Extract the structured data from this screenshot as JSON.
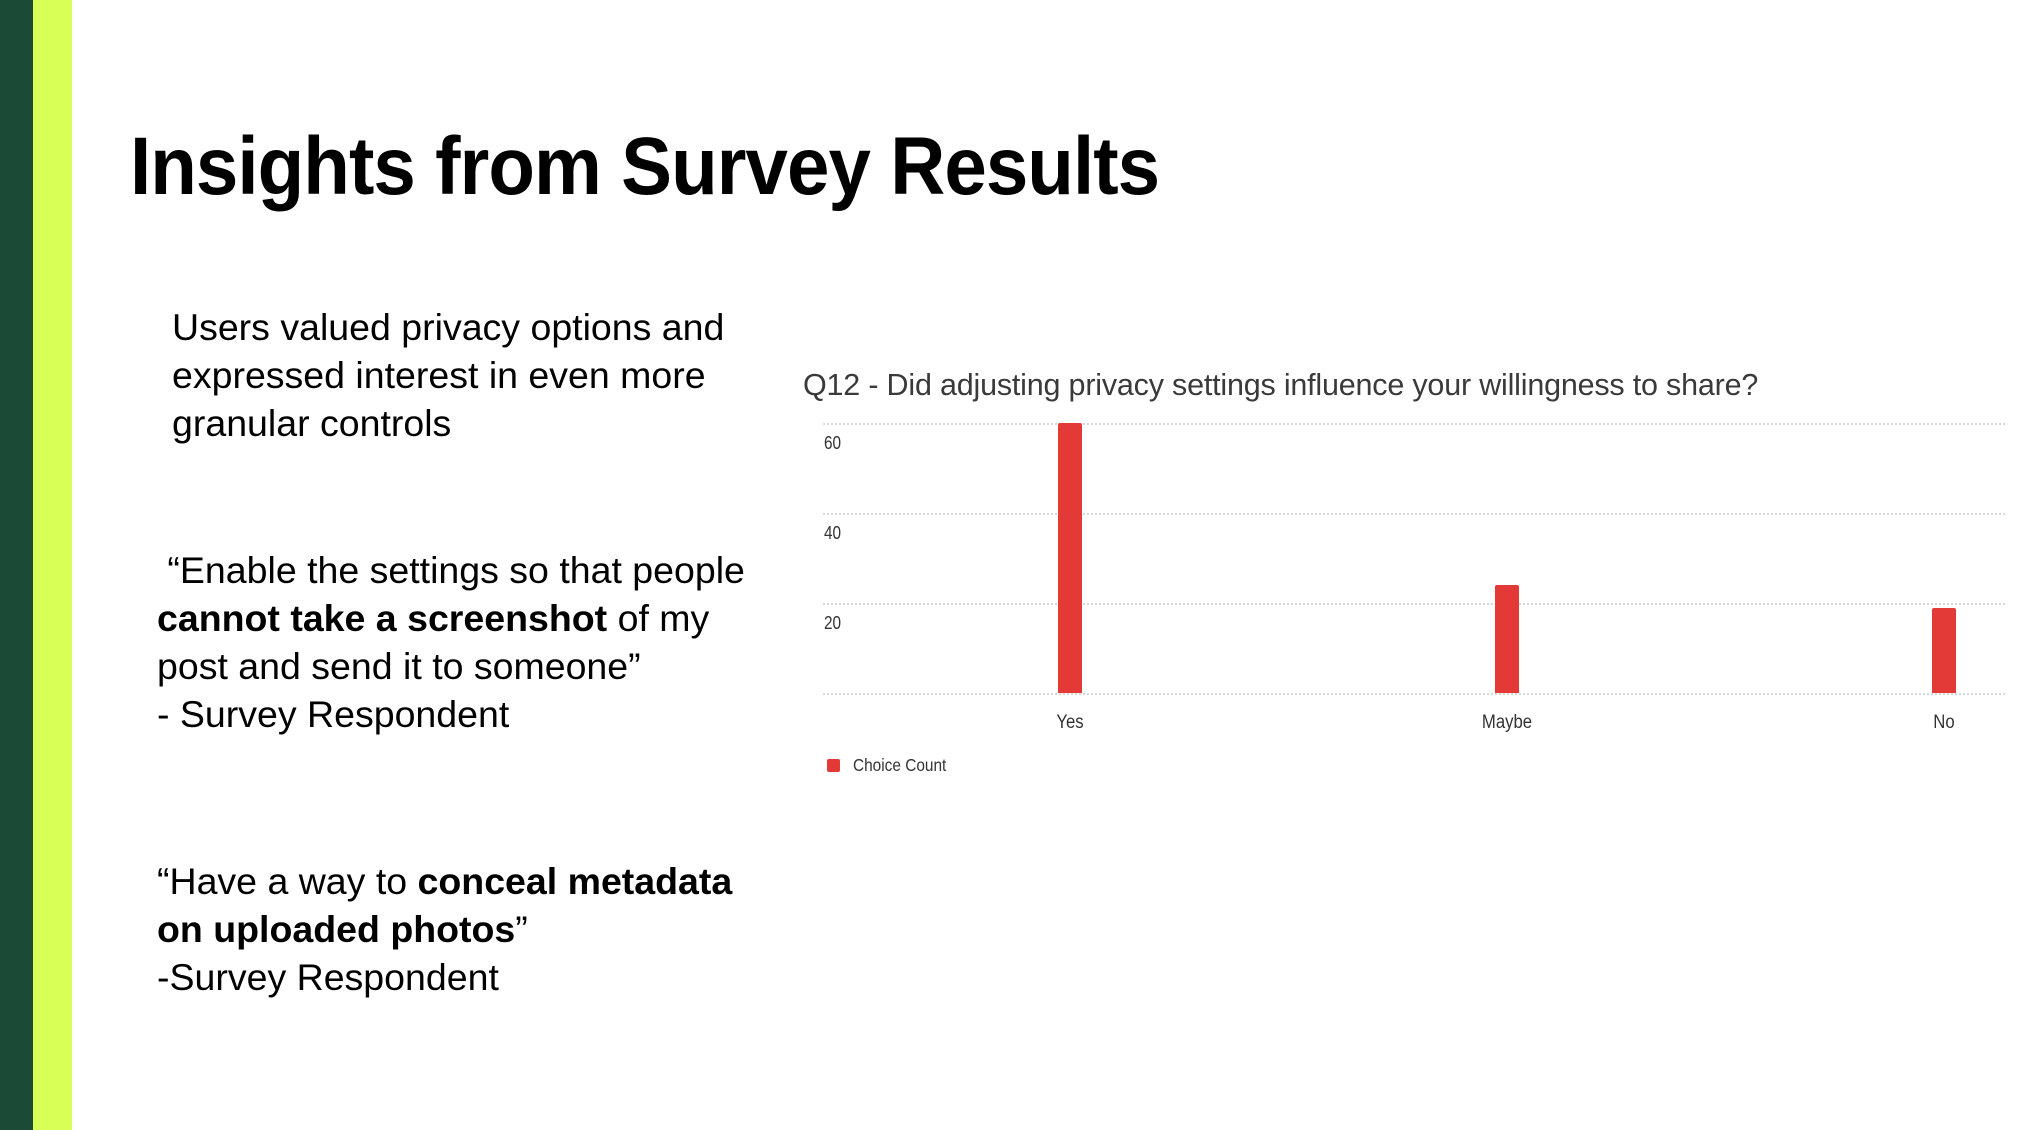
{
  "slide": {
    "title": "Insights from Survey Results",
    "accent_colors": {
      "dark_stripe": "#1b4a37",
      "lime_stripe": "#d7ff55"
    },
    "insight": "Users valued privacy options and expressed interest in even more granular controls",
    "insight_lines": [
      "Users valued privacy options and",
      "expressed interest in even more",
      "granular controls"
    ],
    "quote1": {
      "line1": " “Enable the settings so that people",
      "line2_bold": "cannot take a screenshot",
      "line2_rest": " of my",
      "line3": "post and send it to someone”",
      "attribution": "- Survey Respondent"
    },
    "quote2": {
      "line1_pre": "“Have a way to ",
      "line1_bold": "conceal metadata",
      "line2_bold": "on uploaded photos",
      "line2_rest": "”",
      "attribution": "-Survey Respondent"
    }
  },
  "chart_data": {
    "type": "bar",
    "title": "Q12 - Did adjusting privacy settings influence your willingness to share?",
    "categories": [
      "Yes",
      "Maybe",
      "No"
    ],
    "series": [
      {
        "name": "Choice Count",
        "color": "#e33a37",
        "values": [
          60,
          24,
          19
        ]
      }
    ],
    "values": [
      60,
      24,
      19
    ],
    "xlabel": "",
    "ylabel": "",
    "yticks": [
      "20",
      "40",
      "60"
    ],
    "ylim": [
      0,
      60
    ],
    "grid": true,
    "legend_position": "bottom-left",
    "legend": [
      "Choice Count"
    ]
  }
}
